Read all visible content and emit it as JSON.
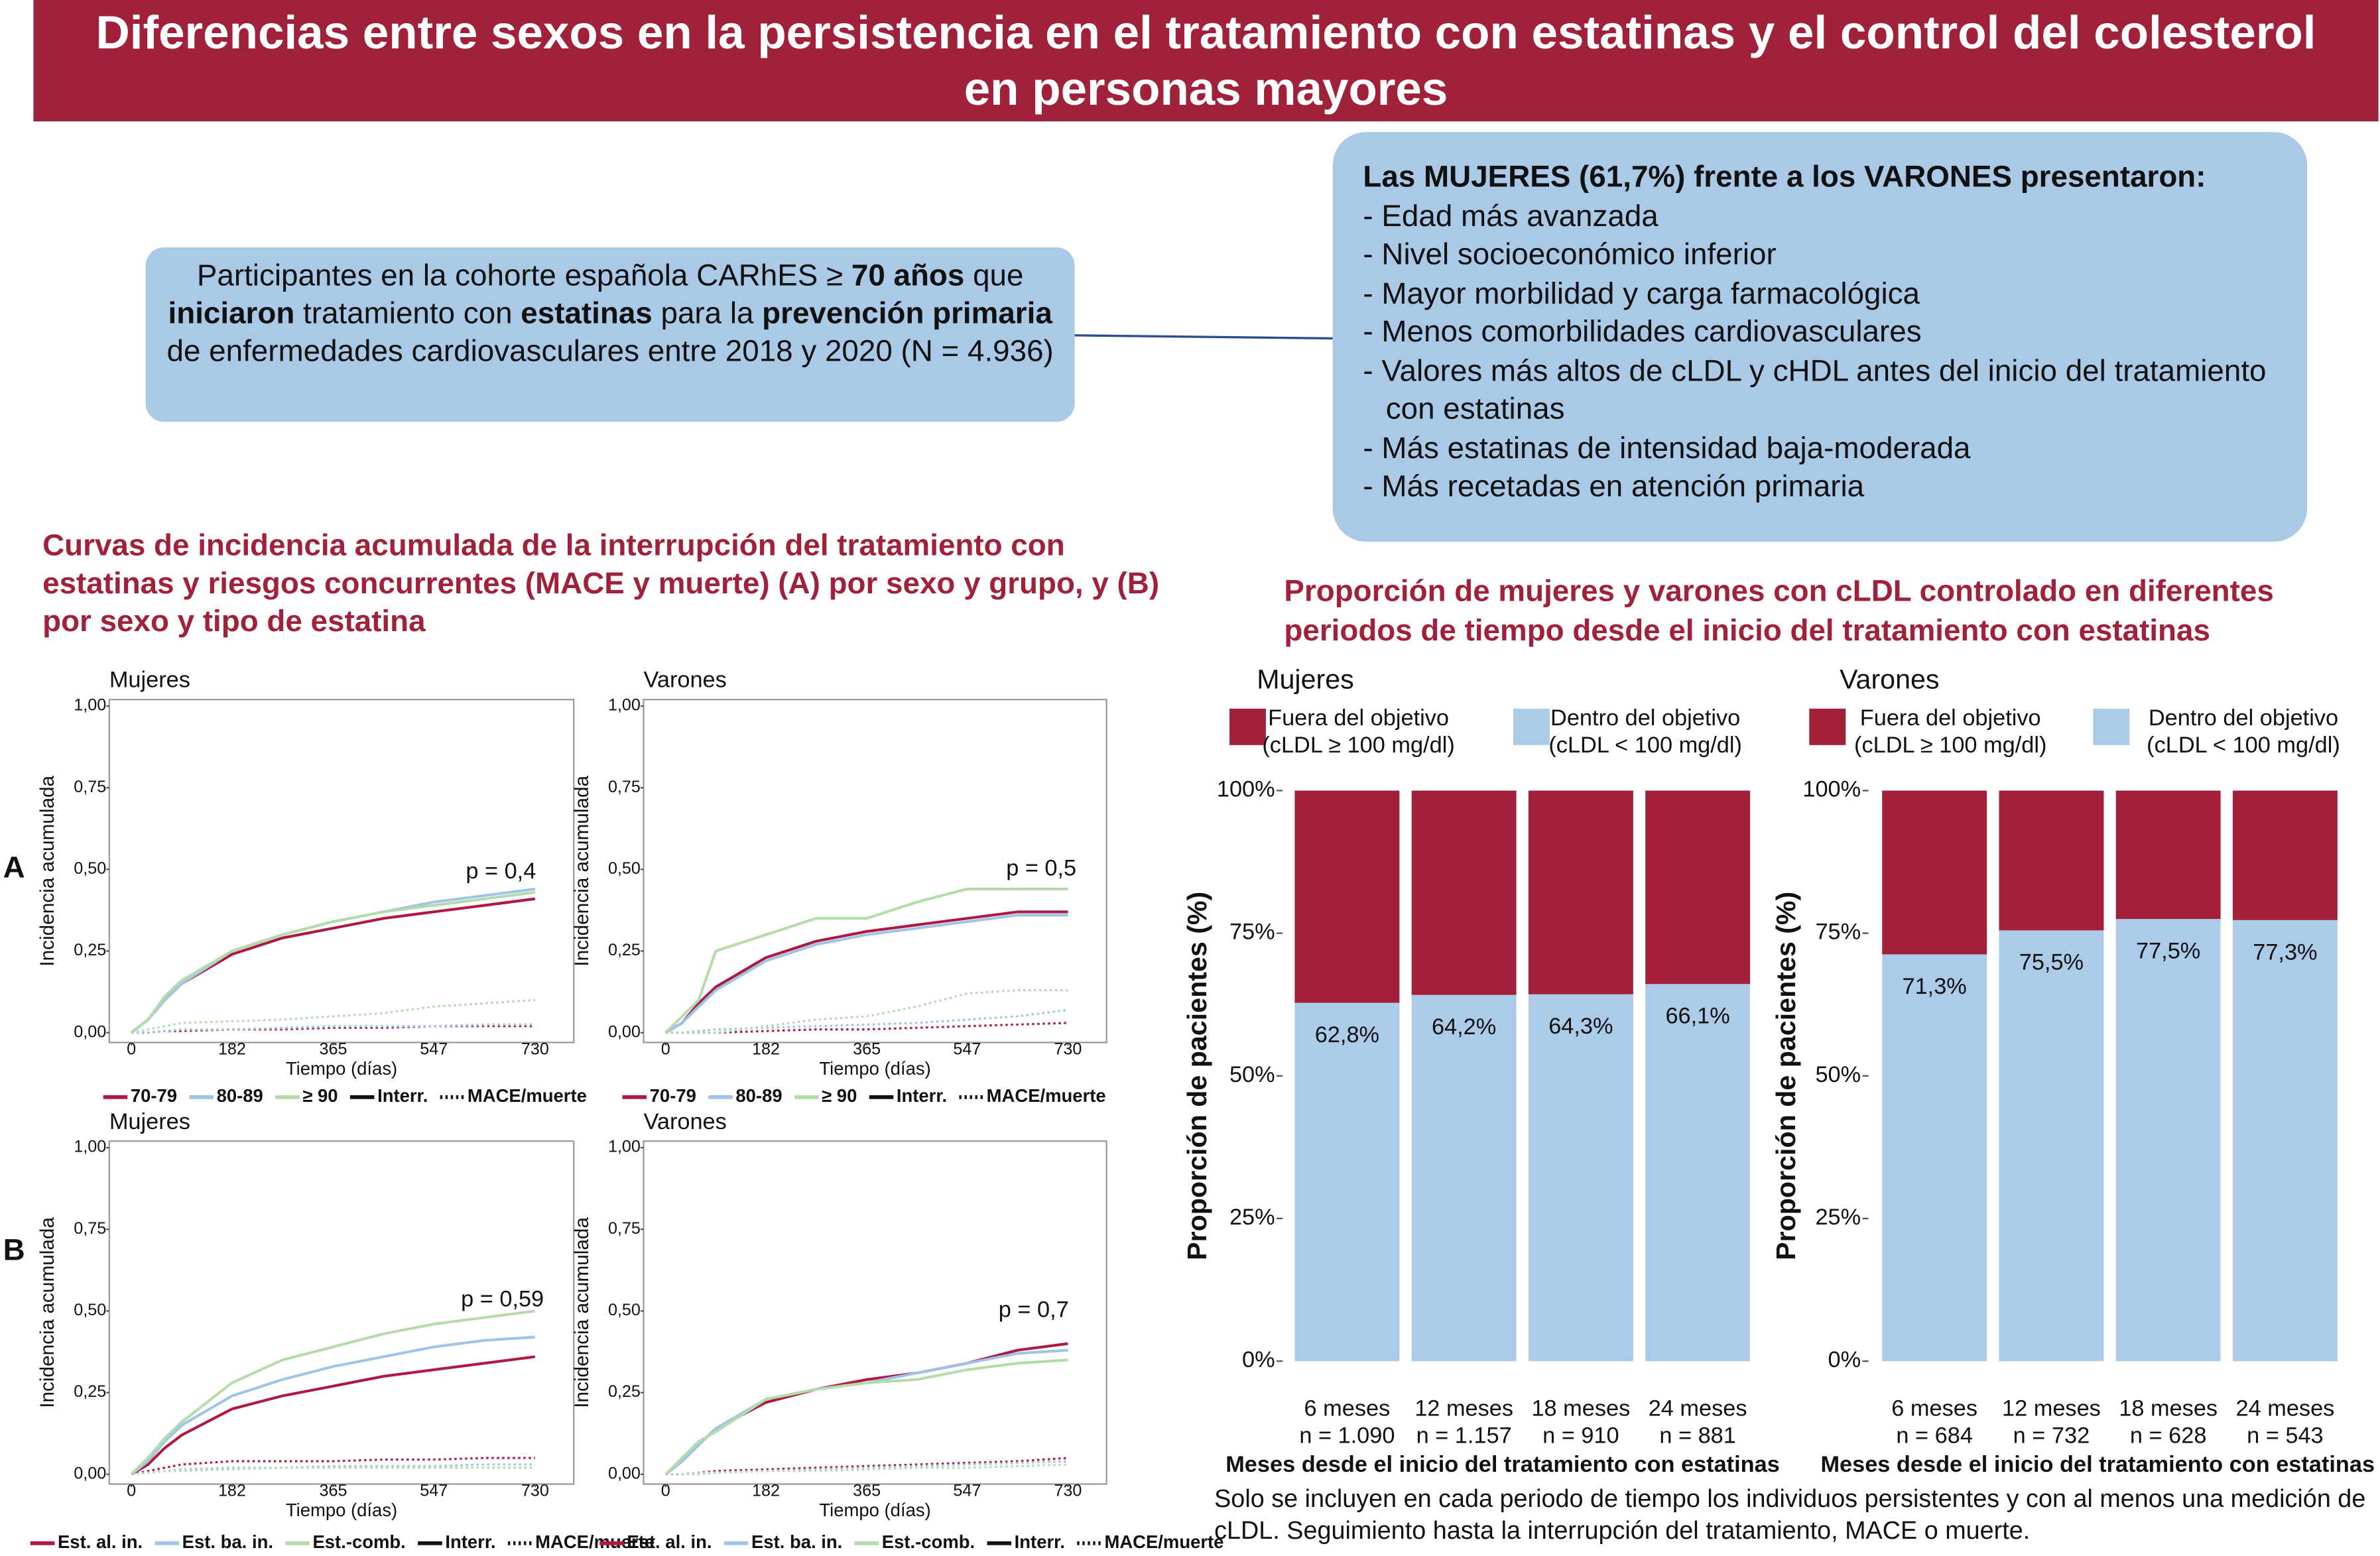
{
  "header": {
    "title": "Diferencias entre sexos en la persistencia en el tratamiento con estatinas y el control del colesterol en personas mayores"
  },
  "participants": {
    "segments": [
      {
        "text": "Participantes en la cohorte española CARhES ≥ ",
        "bold": false
      },
      {
        "text": "70 años",
        "bold": true
      },
      {
        "text": " que ",
        "bold": false
      },
      {
        "text": "iniciaron",
        "bold": true
      },
      {
        "text": " tratamiento con ",
        "bold": false
      },
      {
        "text": "estatinas",
        "bold": true
      },
      {
        "text": " para la ",
        "bold": false
      },
      {
        "text": "prevención primaria",
        "bold": true
      },
      {
        "text": " de enfermedades cardiovasculares entre 2018 y 2020 (N = 4.936)",
        "bold": false
      }
    ]
  },
  "findings": {
    "title": "Las MUJERES (61,7%) frente a los VARONES presentaron:",
    "items": [
      "- Edad más avanzada",
      "- Nivel socioeconómico inferior",
      "- Mayor morbilidad y carga farmacológica",
      "- Menos comorbilidades cardiovasculares",
      "- Valores más altos de cLDL y cHDL antes del inicio del tratamiento con estatinas",
      "- Más estatinas de intensidad baja-moderada",
      "- Más recetadas en atención primaria"
    ]
  },
  "left_section": {
    "title": "Curvas de incidencia acumulada de la interrupción del tratamiento con estatinas y riesgos concurrentes (MACE y muerte) (A) por sexo y grupo, y (B) por sexo y tipo de estatina"
  },
  "right_section": {
    "title": "Proporción de mujeres y varones con cLDL controlado en diferentes periodos de tiempo desde el inicio del tratamiento con estatinas",
    "footnote": "Solo se incluyen en cada periodo de tiempo los individuos persistentes y con al menos una medición de cLDL. Seguimiento hasta la interrupción del tratamiento, MACE o muerte."
  },
  "chart_data": [
    {
      "type": "line",
      "panel": "A",
      "title": "Mujeres",
      "ylabel": "Incidencia acumulada",
      "xlabel": "Tiempo (días)",
      "annotation": "p = 0,4",
      "xlim": [
        -40,
        800
      ],
      "ylim": [
        -0.03,
        1.02
      ],
      "xticks": [
        0,
        182,
        365,
        547,
        730
      ],
      "yticks": [
        {
          "value": 0,
          "label": "0,00"
        },
        {
          "value": 0.25,
          "label": "0,25"
        },
        {
          "value": 0.5,
          "label": "0,50"
        },
        {
          "value": 0.75,
          "label": "0,75"
        },
        {
          "value": 1,
          "label": "1,00"
        }
      ],
      "x": [
        0,
        30,
        60,
        91,
        182,
        273,
        365,
        456,
        547,
        639,
        730
      ],
      "legend_styles": [
        {
          "label": "Interr.",
          "dash": "solid"
        },
        {
          "label": "MACE/muerte",
          "dash": "dotted"
        }
      ],
      "series": [
        {
          "name": "70-79",
          "color": "#b0193f",
          "dash": "solid",
          "values": [
            0,
            0.04,
            0.1,
            0.15,
            0.24,
            0.29,
            0.32,
            0.35,
            0.37,
            0.39,
            0.41
          ]
        },
        {
          "name": "80-89",
          "color": "#9fc4e8",
          "dash": "solid",
          "values": [
            0,
            0.04,
            0.1,
            0.15,
            0.25,
            0.3,
            0.34,
            0.37,
            0.4,
            0.42,
            0.44
          ]
        },
        {
          "name": "≥ 90",
          "color": "#b3dbab",
          "dash": "solid",
          "values": [
            0,
            0.04,
            0.11,
            0.16,
            0.25,
            0.3,
            0.34,
            0.37,
            0.39,
            0.41,
            0.43
          ]
        },
        {
          "color": "#b0193f",
          "dash": "dotted",
          "values": [
            0,
            0,
            0.005,
            0.005,
            0.01,
            0.01,
            0.015,
            0.015,
            0.02,
            0.02,
            0.02
          ]
        },
        {
          "color": "#9fc4e8",
          "dash": "dotted",
          "values": [
            0,
            0,
            0.005,
            0.01,
            0.01,
            0.015,
            0.02,
            0.02,
            0.02,
            0.025,
            0.025
          ]
        },
        {
          "color": "#b3dbab",
          "dash": "dotted",
          "values": [
            0,
            0.01,
            0.02,
            0.03,
            0.035,
            0.04,
            0.05,
            0.06,
            0.08,
            0.09,
            0.1
          ]
        }
      ]
    },
    {
      "type": "line",
      "title": "Varones",
      "ylabel": "Incidencia acumulada",
      "xlabel": "Tiempo (días)",
      "annotation": "p = 0,5",
      "xlim": [
        -40,
        800
      ],
      "ylim": [
        -0.03,
        1.02
      ],
      "xticks": [
        0,
        182,
        365,
        547,
        730
      ],
      "yticks": [
        {
          "value": 0,
          "label": "0,00"
        },
        {
          "value": 0.25,
          "label": "0,25"
        },
        {
          "value": 0.5,
          "label": "0,50"
        },
        {
          "value": 0.75,
          "label": "0,75"
        },
        {
          "value": 1,
          "label": "1,00"
        }
      ],
      "x": [
        0,
        30,
        60,
        91,
        182,
        273,
        365,
        456,
        547,
        639,
        730
      ],
      "legend_styles": [
        {
          "label": "Interr.",
          "dash": "solid"
        },
        {
          "label": "MACE/muerte",
          "dash": "dotted"
        }
      ],
      "series": [
        {
          "name": "70-79",
          "color": "#b0193f",
          "dash": "solid",
          "values": [
            0,
            0.03,
            0.09,
            0.14,
            0.23,
            0.28,
            0.31,
            0.33,
            0.35,
            0.37,
            0.37
          ]
        },
        {
          "name": "80-89",
          "color": "#9fc4e8",
          "dash": "solid",
          "values": [
            0,
            0.03,
            0.08,
            0.13,
            0.22,
            0.27,
            0.3,
            0.32,
            0.34,
            0.36,
            0.36
          ]
        },
        {
          "name": "≥ 90",
          "color": "#b3dbab",
          "dash": "solid",
          "values": [
            0,
            0.05,
            0.1,
            0.25,
            0.3,
            0.35,
            0.35,
            0.4,
            0.44,
            0.44,
            0.44
          ]
        },
        {
          "color": "#b0193f",
          "dash": "dotted",
          "values": [
            0,
            0,
            0,
            0,
            0.005,
            0.01,
            0.01,
            0.015,
            0.02,
            0.025,
            0.03
          ]
        },
        {
          "color": "#9fc4e8",
          "dash": "dotted",
          "values": [
            0,
            0,
            0.005,
            0.01,
            0.015,
            0.02,
            0.025,
            0.03,
            0.04,
            0.05,
            0.07
          ]
        },
        {
          "color": "#b3dbab",
          "dash": "dotted",
          "values": [
            0,
            0,
            0,
            0,
            0.02,
            0.04,
            0.05,
            0.08,
            0.12,
            0.13,
            0.13
          ]
        }
      ]
    },
    {
      "type": "line",
      "panel": "B",
      "title": "Mujeres",
      "ylabel": "Incidencia acumulada",
      "xlabel": "Tiempo (días)",
      "annotation": "p = 0,59",
      "xlim": [
        -40,
        800
      ],
      "ylim": [
        -0.03,
        1.02
      ],
      "xticks": [
        0,
        182,
        365,
        547,
        730
      ],
      "yticks": [
        {
          "value": 0,
          "label": "0,00"
        },
        {
          "value": 0.25,
          "label": "0,25"
        },
        {
          "value": 0.5,
          "label": "0,50"
        },
        {
          "value": 0.75,
          "label": "0,75"
        },
        {
          "value": 1,
          "label": "1,00"
        }
      ],
      "x": [
        0,
        30,
        60,
        91,
        182,
        273,
        365,
        456,
        547,
        639,
        730
      ],
      "legend_styles": [
        {
          "label": "Interr.",
          "dash": "solid"
        },
        {
          "label": "MACE/muerte",
          "dash": "dotted"
        }
      ],
      "series": [
        {
          "name": "Est. al. in.",
          "color": "#b0193f",
          "dash": "solid",
          "values": [
            0,
            0.03,
            0.08,
            0.12,
            0.2,
            0.24,
            0.27,
            0.3,
            0.32,
            0.34,
            0.36
          ]
        },
        {
          "name": "Est. ba. in.",
          "color": "#9fc4e8",
          "dash": "solid",
          "values": [
            0,
            0.04,
            0.1,
            0.15,
            0.24,
            0.29,
            0.33,
            0.36,
            0.39,
            0.41,
            0.42
          ]
        },
        {
          "name": "Est.-comb.",
          "color": "#b3dbab",
          "dash": "solid",
          "values": [
            0,
            0.05,
            0.11,
            0.16,
            0.28,
            0.35,
            0.39,
            0.43,
            0.46,
            0.48,
            0.5
          ]
        },
        {
          "color": "#b0193f",
          "dash": "dotted",
          "values": [
            0,
            0.01,
            0.02,
            0.03,
            0.04,
            0.04,
            0.04,
            0.045,
            0.045,
            0.05,
            0.05
          ]
        },
        {
          "color": "#9fc4e8",
          "dash": "dotted",
          "values": [
            0,
            0.005,
            0.01,
            0.015,
            0.02,
            0.02,
            0.025,
            0.025,
            0.025,
            0.03,
            0.03
          ]
        },
        {
          "color": "#b3dbab",
          "dash": "dotted",
          "values": [
            0,
            0.005,
            0.01,
            0.01,
            0.015,
            0.02,
            0.02,
            0.02,
            0.02,
            0.02,
            0.02
          ]
        }
      ]
    },
    {
      "type": "line",
      "title": "Varones",
      "ylabel": "Incidencia acumulada",
      "xlabel": "Tiempo (días)",
      "annotation": "p = 0,7",
      "xlim": [
        -40,
        800
      ],
      "ylim": [
        -0.03,
        1.02
      ],
      "xticks": [
        0,
        182,
        365,
        547,
        730
      ],
      "yticks": [
        {
          "value": 0,
          "label": "0,00"
        },
        {
          "value": 0.25,
          "label": "0,25"
        },
        {
          "value": 0.5,
          "label": "0,50"
        },
        {
          "value": 0.75,
          "label": "0,75"
        },
        {
          "value": 1,
          "label": "1,00"
        }
      ],
      "x": [
        0,
        30,
        60,
        91,
        182,
        273,
        365,
        456,
        547,
        639,
        730
      ],
      "legend_styles": [
        {
          "label": "Interr.",
          "dash": "solid"
        },
        {
          "label": "MACE/muerte",
          "dash": "dotted"
        }
      ],
      "series": [
        {
          "name": "Est. al. in.",
          "color": "#b0193f",
          "dash": "solid",
          "values": [
            0,
            0.04,
            0.09,
            0.14,
            0.22,
            0.26,
            0.29,
            0.31,
            0.34,
            0.38,
            0.4
          ]
        },
        {
          "name": "Est. ba. in.",
          "color": "#9fc4e8",
          "dash": "solid",
          "values": [
            0,
            0.04,
            0.09,
            0.14,
            0.23,
            0.26,
            0.28,
            0.31,
            0.34,
            0.37,
            0.38
          ]
        },
        {
          "name": "Est.-comb.",
          "color": "#b3dbab",
          "dash": "solid",
          "values": [
            0,
            0.05,
            0.1,
            0.13,
            0.23,
            0.26,
            0.28,
            0.29,
            0.32,
            0.34,
            0.35
          ]
        },
        {
          "color": "#b0193f",
          "dash": "dotted",
          "values": [
            0,
            0,
            0.005,
            0.01,
            0.015,
            0.02,
            0.025,
            0.03,
            0.035,
            0.04,
            0.05
          ]
        },
        {
          "color": "#9fc4e8",
          "dash": "dotted",
          "values": [
            0,
            0,
            0.005,
            0.005,
            0.01,
            0.015,
            0.02,
            0.025,
            0.03,
            0.035,
            0.04
          ]
        },
        {
          "color": "#b3dbab",
          "dash": "dotted",
          "values": [
            0,
            0,
            0,
            0.005,
            0.01,
            0.01,
            0.015,
            0.02,
            0.02,
            0.025,
            0.03
          ]
        }
      ]
    },
    {
      "type": "stacked_bar",
      "title": "Mujeres",
      "ylabel": "Proporción de pacientes (%)",
      "xlabel": "Meses desde el inicio del tratamiento con estatinas",
      "categories": [
        "6 meses",
        "12 meses",
        "18 meses",
        "24 meses"
      ],
      "n_labels": [
        "n = 1.090",
        "n = 1.157",
        "n = 910",
        "n = 881"
      ],
      "ylim": [
        0,
        100
      ],
      "yticks": [
        {
          "value": 0,
          "label": "0%"
        },
        {
          "value": 25,
          "label": "25%"
        },
        {
          "value": 50,
          "label": "50%"
        },
        {
          "value": 75,
          "label": "75%"
        },
        {
          "value": 100,
          "label": "100%"
        }
      ],
      "series": [
        {
          "name": "Dentro del objetivo",
          "legend_note": "(cLDL < 100 mg/dl)",
          "color": "#abcbe9",
          "values": [
            62.8,
            64.2,
            64.3,
            66.1
          ],
          "value_labels": [
            "62,8%",
            "64,2%",
            "64,3%",
            "66,1%"
          ]
        },
        {
          "name": "Fuera del objetivo",
          "legend_note": "(cLDL ≥ 100 mg/dl)",
          "color": "#a3203b",
          "values": [
            37.2,
            35.8,
            35.7,
            33.9
          ]
        }
      ]
    },
    {
      "type": "stacked_bar",
      "title": "Varones",
      "ylabel": "Proporción de pacientes (%)",
      "xlabel": "Meses desde el inicio del tratamiento con estatinas",
      "categories": [
        "6 meses",
        "12 meses",
        "18 meses",
        "24 meses"
      ],
      "n_labels": [
        "n = 684",
        "n = 732",
        "n = 628",
        "n = 543"
      ],
      "ylim": [
        0,
        100
      ],
      "yticks": [
        {
          "value": 0,
          "label": "0%"
        },
        {
          "value": 25,
          "label": "25%"
        },
        {
          "value": 50,
          "label": "50%"
        },
        {
          "value": 75,
          "label": "75%"
        },
        {
          "value": 100,
          "label": "100%"
        }
      ],
      "series": [
        {
          "name": "Dentro del objetivo",
          "legend_note": "(cLDL < 100 mg/dl)",
          "color": "#abcbe9",
          "values": [
            71.3,
            75.5,
            77.5,
            77.3
          ],
          "value_labels": [
            "71,3%",
            "75,5%",
            "77,5%",
            "77,3%"
          ]
        },
        {
          "name": "Fuera del objetivo",
          "legend_note": "(cLDL ≥ 100 mg/dl)",
          "color": "#a3203b",
          "values": [
            28.7,
            24.5,
            22.5,
            22.7
          ]
        }
      ]
    }
  ]
}
